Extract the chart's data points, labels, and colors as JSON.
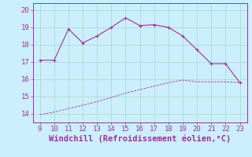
{
  "x_upper": [
    9,
    10,
    11,
    12,
    13,
    14,
    15,
    16,
    17,
    18,
    19,
    20,
    21,
    22,
    23
  ],
  "y_upper": [
    17.1,
    17.1,
    18.9,
    18.1,
    18.5,
    19.0,
    19.55,
    19.1,
    19.15,
    19.0,
    18.5,
    17.7,
    16.9,
    16.9,
    15.8
  ],
  "x_lower": [
    9,
    10,
    11,
    12,
    13,
    14,
    15,
    16,
    17,
    18,
    19,
    20,
    21,
    22,
    23
  ],
  "y_lower": [
    13.95,
    14.1,
    14.3,
    14.5,
    14.7,
    14.95,
    15.2,
    15.4,
    15.6,
    15.8,
    15.95,
    15.85,
    15.85,
    15.85,
    15.8
  ],
  "line_color": "#993399",
  "bg_color": "#cceeff",
  "grid_color": "#aaddcc",
  "xlabel": "Windchill (Refroidissement éolien,°C)",
  "xlim": [
    8.5,
    23.5
  ],
  "ylim": [
    13.5,
    20.4
  ],
  "xticks": [
    9,
    10,
    11,
    12,
    13,
    14,
    15,
    16,
    17,
    18,
    19,
    20,
    21,
    22,
    23
  ],
  "yticks": [
    14,
    15,
    16,
    17,
    18,
    19,
    20
  ],
  "tick_fontsize": 6.5,
  "xlabel_fontsize": 7.5,
  "marker_size": 3.5,
  "linewidth": 0.8
}
